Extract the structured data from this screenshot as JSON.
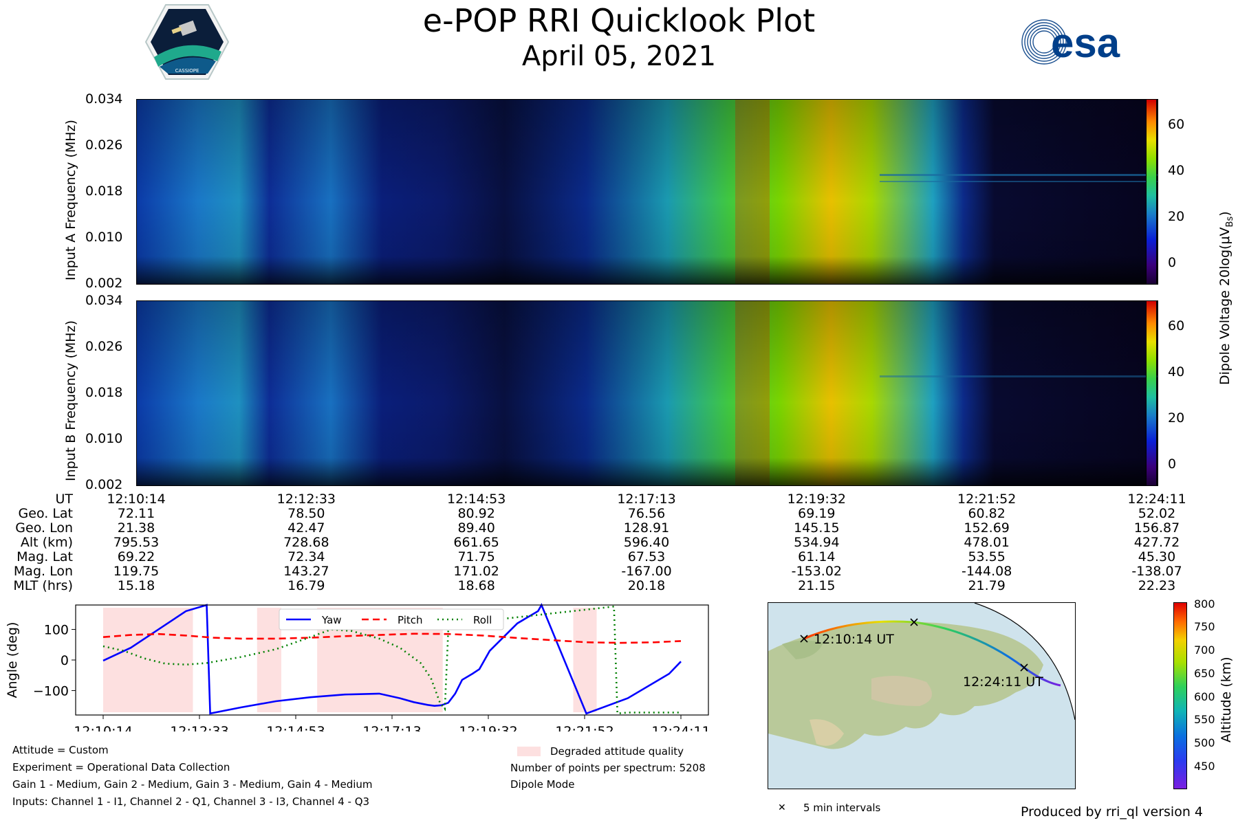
{
  "header": {
    "title": "e-POP RRI Quicklook Plot",
    "date": "April 05, 2021",
    "esa_logo_text": "esa"
  },
  "colors": {
    "yaw": "#0000ff",
    "pitch": "#ff0000",
    "roll": "#008000",
    "degraded": "#fde0e0"
  },
  "spectrograms": {
    "panelA": {
      "ylabel": "Input A Frequency (MHz)"
    },
    "panelB": {
      "ylabel": "Input B Frequency (MHz)"
    },
    "yticks": [
      "0.034",
      "0.026",
      "0.018",
      "0.010",
      "0.002"
    ],
    "colorbar_label": "Dipole Voltage 20log(μV",
    "colorbar_label_sub": "Bs",
    "colorbar_ticks": [
      "60",
      "40",
      "20",
      "0"
    ]
  },
  "ephemeris": {
    "labels": [
      "UT",
      "Geo. Lat",
      "Geo. Lon",
      "Alt (km)",
      "Mag. Lat",
      "Mag. Lon",
      "MLT (hrs)"
    ],
    "columns": [
      [
        "12:10:14",
        "72.11",
        "21.38",
        "795.53",
        "69.22",
        "119.75",
        "15.18"
      ],
      [
        "12:12:33",
        "78.50",
        "42.47",
        "728.68",
        "72.34",
        "143.27",
        "16.79"
      ],
      [
        "12:14:53",
        "80.92",
        "89.40",
        "661.65",
        "71.75",
        "171.02",
        "18.68"
      ],
      [
        "12:17:13",
        "76.56",
        "128.91",
        "596.40",
        "67.53",
        "-167.00",
        "20.18"
      ],
      [
        "12:19:32",
        "69.19",
        "145.15",
        "534.94",
        "61.14",
        "-153.02",
        "21.15"
      ],
      [
        "12:21:52",
        "60.82",
        "152.69",
        "478.01",
        "53.55",
        "-144.08",
        "21.79"
      ],
      [
        "12:24:11",
        "52.02",
        "156.87",
        "427.72",
        "45.30",
        "-138.07",
        "22.23"
      ]
    ]
  },
  "chart_data": {
    "type": "line",
    "title": "",
    "xlabel": "",
    "ylabel": "Angle (deg)",
    "x_ticks": [
      "12:10:14",
      "12:12:33",
      "12:14:53",
      "12:17:13",
      "12:19:32",
      "12:21:52",
      "12:24:11"
    ],
    "xlim": [
      0,
      837
    ],
    "ylim": [
      -180,
      180
    ],
    "y_ticks": [
      100,
      0,
      -100
    ],
    "y_tick_labels": [
      "100",
      "0",
      "−100"
    ],
    "legend": [
      "Yaw",
      "Pitch",
      "Roll"
    ],
    "degraded_spans": [
      [
        0,
        130
      ],
      [
        223,
        258
      ],
      [
        310,
        492
      ],
      [
        681,
        715
      ]
    ],
    "series": [
      {
        "name": "Yaw",
        "style": "solid",
        "x": [
          0,
          40,
          80,
          120,
          150,
          155,
          200,
          250,
          300,
          350,
          400,
          430,
          450,
          470,
          480,
          490,
          500,
          510,
          520,
          535,
          545,
          560,
          600,
          630,
          635,
          700,
          760,
          820,
          837
        ],
        "y": [
          -2,
          40,
          100,
          160,
          180,
          -175,
          -155,
          -135,
          -122,
          -113,
          -110,
          -125,
          -138,
          -147,
          -150,
          -148,
          -140,
          -110,
          -65,
          -45,
          -30,
          30,
          120,
          160,
          180,
          -175,
          -125,
          -45,
          -5
        ]
      },
      {
        "name": "Pitch",
        "style": "dashed",
        "x": [
          0,
          40,
          80,
          120,
          160,
          200,
          250,
          300,
          350,
          400,
          450,
          500,
          550,
          600,
          650,
          700,
          750,
          800,
          837
        ],
        "y": [
          75,
          82,
          85,
          80,
          73,
          70,
          70,
          73,
          78,
          82,
          86,
          85,
          80,
          72,
          65,
          58,
          56,
          58,
          62
        ]
      },
      {
        "name": "Roll",
        "style": "dotted",
        "x": [
          0,
          30,
          60,
          90,
          120,
          150,
          200,
          250,
          300,
          330,
          360,
          400,
          430,
          460,
          475,
          488,
          495,
          500,
          540,
          580,
          620,
          660,
          700,
          740,
          745,
          760,
          800,
          837
        ],
        "y": [
          45,
          30,
          5,
          -12,
          -15,
          -10,
          10,
          35,
          75,
          100,
          95,
          70,
          40,
          -10,
          -60,
          -140,
          -160,
          100,
          120,
          135,
          145,
          155,
          165,
          175,
          -175,
          -172,
          -172,
          -172
        ]
      }
    ]
  },
  "notes": {
    "attitude": "Attitude = Custom",
    "experiment": "Experiment = Operational Data Collection",
    "gains": "Gain 1 - Medium, Gain 2 - Medium, Gain 3 - Medium, Gain 4 - Medium",
    "inputs": "Inputs: Channel 1 - I1, Channel 2 - Q1, Channel 3 - I3, Channel 4 - Q3",
    "degraded_legend": "Degraded attitude quality",
    "points": "Number of points per spectrum: 5208",
    "mode": "Dipole Mode"
  },
  "map": {
    "start_label": "12:10:14 UT",
    "end_label": "12:24:11 UT",
    "interval_legend": "5 min intervals",
    "altitude_label": "Altitude (km)",
    "altitude_ticks": [
      "800",
      "750",
      "700",
      "650",
      "600",
      "550",
      "500",
      "450"
    ]
  },
  "footer": {
    "produced_by": "Produced by rri_ql version 4"
  }
}
